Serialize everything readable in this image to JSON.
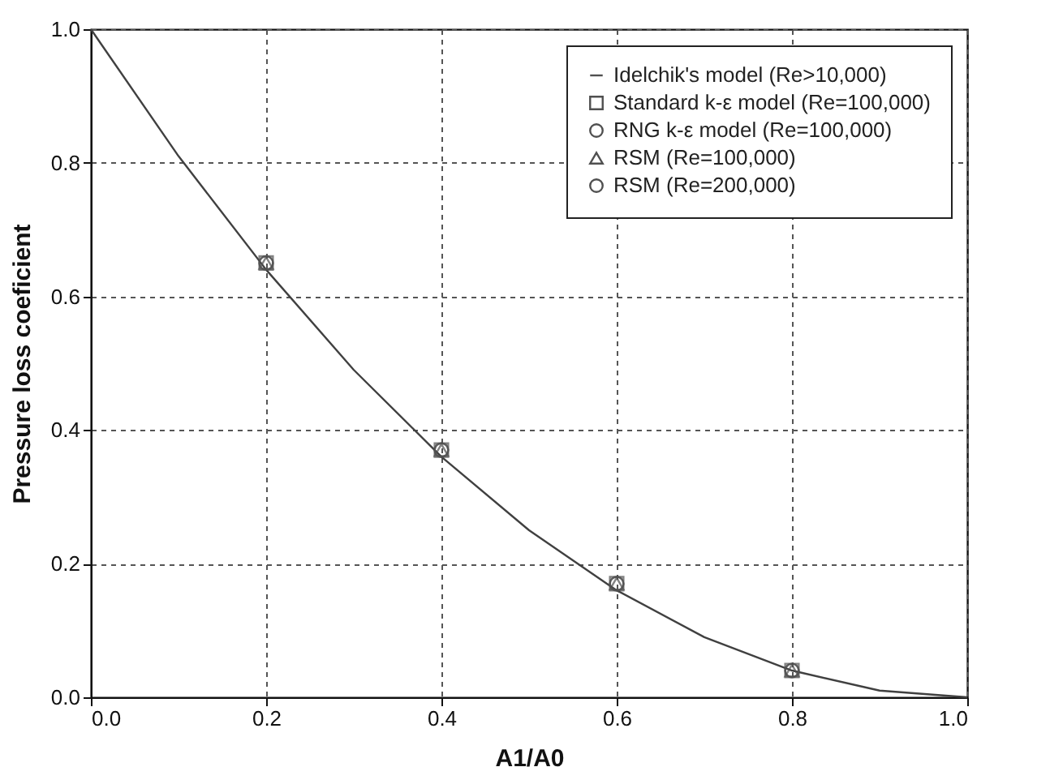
{
  "chart_data": {
    "type": "scatter",
    "xlabel": "A1/A0",
    "ylabel": "Pressure loss coeficient",
    "xlim": [
      0,
      1
    ],
    "ylim": [
      0,
      1
    ],
    "xticks": [
      {
        "value": 0,
        "label": "0.0"
      },
      {
        "value": 0.2,
        "label": "0.2"
      },
      {
        "value": 0.4,
        "label": "0.4"
      },
      {
        "value": 0.6,
        "label": "0.6"
      },
      {
        "value": 0.8,
        "label": "0.8"
      },
      {
        "value": 1,
        "label": "1.0"
      }
    ],
    "yticks": [
      {
        "value": 0,
        "label": "0.0"
      },
      {
        "value": 0.2,
        "label": "0.2"
      },
      {
        "value": 0.4,
        "label": "0.4"
      },
      {
        "value": 0.6,
        "label": "0.6"
      },
      {
        "value": 0.8,
        "label": "0.8"
      },
      {
        "value": 1,
        "label": "1.0"
      }
    ],
    "grid": true,
    "legend": "top right",
    "series": [
      {
        "name": "Idelchik's model (Re>10,000)",
        "type": "line",
        "color": "#404040",
        "marker": "none",
        "x": [
          0,
          0.1,
          0.2,
          0.3,
          0.4,
          0.5,
          0.6,
          0.7,
          0.8,
          0.9,
          1.0
        ],
        "values": [
          1.0,
          0.81,
          0.64,
          0.49,
          0.36,
          0.25,
          0.16,
          0.09,
          0.04,
          0.01,
          0
        ]
      },
      {
        "name": "Standard k-ε model (Re=100,000)",
        "type": "scatter",
        "color": "#505050",
        "marker": "square",
        "x": [
          0.2,
          0.4,
          0.6,
          0.8
        ],
        "values": [
          0.65,
          0.37,
          0.17,
          0.04
        ]
      },
      {
        "name": "RNG k-ε model (Re=100,000)",
        "type": "scatter",
        "color": "#505050",
        "marker": "circle",
        "x": [
          0.2,
          0.4,
          0.6,
          0.8
        ],
        "values": [
          0.65,
          0.37,
          0.17,
          0.04
        ]
      },
      {
        "name": "RSM (Re=100,000)",
        "type": "scatter",
        "color": "#505050",
        "marker": "triangle",
        "x": [
          0.2,
          0.4,
          0.6,
          0.8
        ],
        "values": [
          0.65,
          0.37,
          0.17,
          0.04
        ]
      },
      {
        "name": "RSM (Re=200,000)",
        "type": "scatter",
        "color": "#505050",
        "marker": "circle",
        "x": [
          0.2,
          0.4,
          0.6,
          0.8
        ],
        "values": [
          0.65,
          0.37,
          0.17,
          0.04
        ]
      }
    ]
  }
}
